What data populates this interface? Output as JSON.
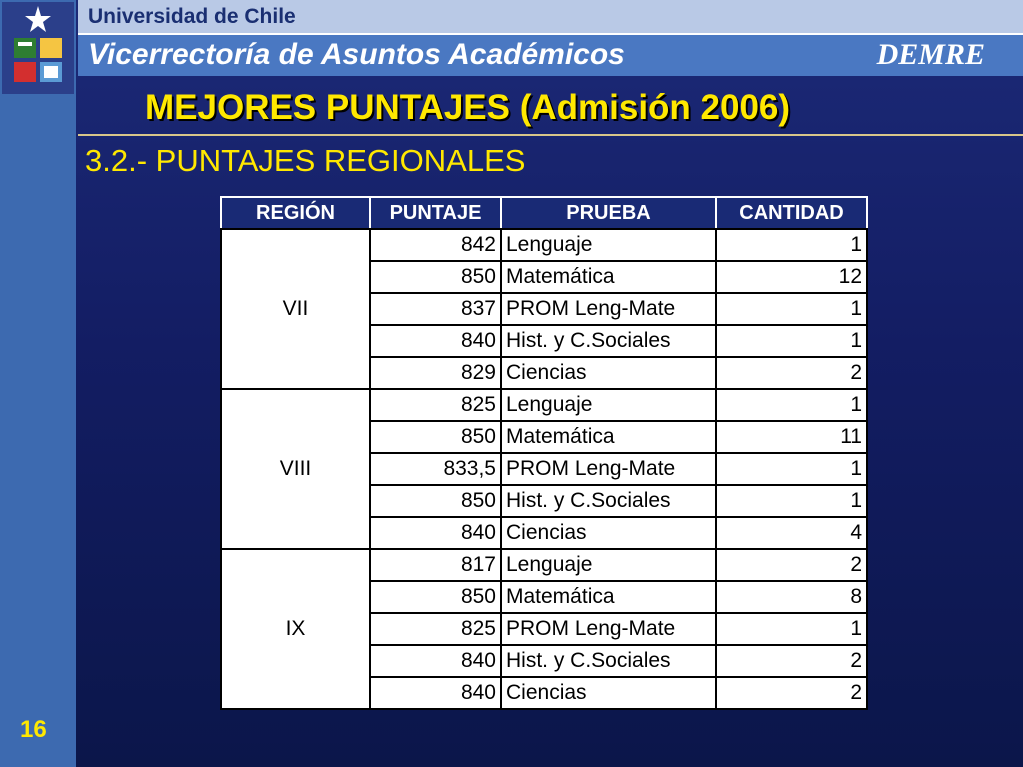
{
  "header": {
    "university": "Universidad de Chile",
    "vice_rectory": "Vicerrectoría de Asuntos Académicos",
    "unit": "DEMRE"
  },
  "slide": {
    "title": "MEJORES PUNTAJES (Admisión 2006)",
    "subtitle": "3.2.- PUNTAJES REGIONALES",
    "page_number": "16"
  },
  "table": {
    "columns": [
      "REGIÓN",
      "PUNTAJE",
      "PRUEBA",
      "CANTIDAD"
    ],
    "regions": [
      {
        "name": "VII",
        "rows": [
          {
            "score": "842",
            "test": "Lenguaje",
            "count": "1"
          },
          {
            "score": "850",
            "test": "Matemática",
            "count": "12"
          },
          {
            "score": "837",
            "test": "PROM Leng-Mate",
            "count": "1"
          },
          {
            "score": "840",
            "test": "Hist. y C.Sociales",
            "count": "1"
          },
          {
            "score": "829",
            "test": "Ciencias",
            "count": "2"
          }
        ]
      },
      {
        "name": "VIII",
        "rows": [
          {
            "score": "825",
            "test": "Lenguaje",
            "count": "1"
          },
          {
            "score": "850",
            "test": "Matemática",
            "count": "11"
          },
          {
            "score": "833,5",
            "test": "PROM Leng-Mate",
            "count": "1"
          },
          {
            "score": "850",
            "test": "Hist. y C.Sociales",
            "count": "1"
          },
          {
            "score": "840",
            "test": "Ciencias",
            "count": "4"
          }
        ]
      },
      {
        "name": "IX",
        "rows": [
          {
            "score": "817",
            "test": "Lenguaje",
            "count": "2"
          },
          {
            "score": "850",
            "test": "Matemática",
            "count": "8"
          },
          {
            "score": "825",
            "test": "PROM Leng-Mate",
            "count": "1"
          },
          {
            "score": "840",
            "test": "Hist. y C.Sociales",
            "count": "2"
          },
          {
            "score": "840",
            "test": "Ciencias",
            "count": "2"
          }
        ]
      }
    ]
  }
}
